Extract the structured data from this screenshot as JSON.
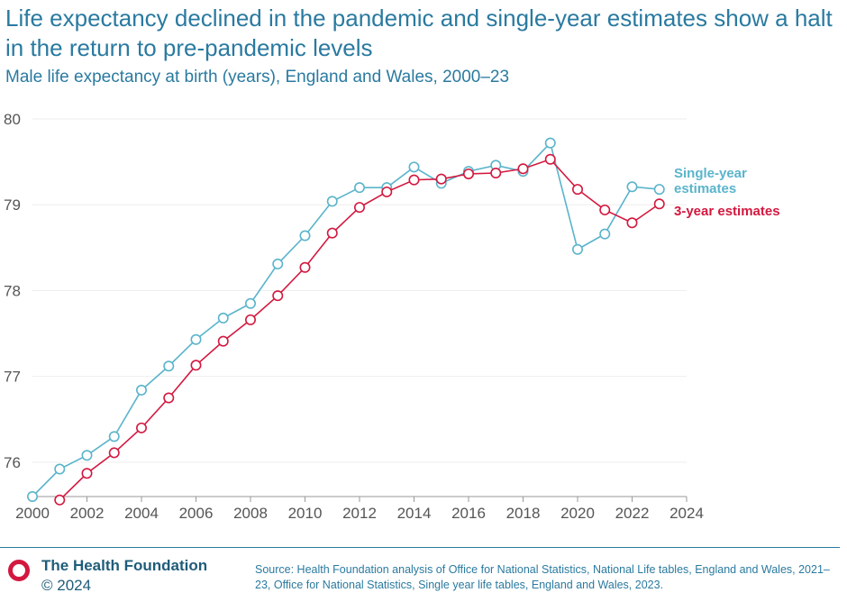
{
  "header": {
    "title": "Life expectancy declined in the pandemic and single-year estimates show a halt in the return to pre-pandemic levels",
    "subtitle": "Male life expectancy at birth (years), England and Wales, 2000–23"
  },
  "chart_data": {
    "type": "line",
    "title": "Life expectancy declined in the pandemic and single-year estimates show a halt in the return to pre-pandemic levels",
    "subtitle": "Male life expectancy at birth (years), England and Wales, 2000–23",
    "xlabel": "",
    "ylabel": "",
    "xlim": [
      2000,
      2024
    ],
    "ylim": [
      75.6,
      80
    ],
    "x_ticks": [
      2000,
      2002,
      2004,
      2006,
      2008,
      2010,
      2012,
      2014,
      2016,
      2018,
      2020,
      2022,
      2024
    ],
    "y_ticks": [
      76,
      77,
      78,
      79,
      80
    ],
    "grid": true,
    "colors": {
      "single": "#5ab4cb",
      "three": "#d3183f",
      "axis": "#999999",
      "grid": "#eeeeee"
    },
    "series": [
      {
        "id": "single",
        "name": "Single-year estimates",
        "label_lines": [
          "Single-year",
          "estimates"
        ],
        "x": [
          2000,
          2001,
          2002,
          2003,
          2004,
          2005,
          2006,
          2007,
          2008,
          2009,
          2010,
          2011,
          2012,
          2013,
          2014,
          2015,
          2016,
          2017,
          2018,
          2019,
          2020,
          2021,
          2022,
          2023
        ],
        "values": [
          75.6,
          75.92,
          76.08,
          76.3,
          76.84,
          77.12,
          77.43,
          77.68,
          77.85,
          78.31,
          78.64,
          79.04,
          79.2,
          79.2,
          79.44,
          79.25,
          79.39,
          79.46,
          79.39,
          79.72,
          78.48,
          78.66,
          79.21,
          79.18
        ]
      },
      {
        "id": "three",
        "name": "3-year estimates",
        "label_lines": [
          "3-year estimates"
        ],
        "x": [
          2001,
          2002,
          2003,
          2004,
          2005,
          2006,
          2007,
          2008,
          2009,
          2010,
          2011,
          2012,
          2013,
          2014,
          2015,
          2016,
          2017,
          2018,
          2019,
          2020,
          2021,
          2022,
          2023
        ],
        "values": [
          75.56,
          75.87,
          76.11,
          76.4,
          76.75,
          77.13,
          77.41,
          77.66,
          77.94,
          78.27,
          78.67,
          78.97,
          79.15,
          79.29,
          79.3,
          79.36,
          79.37,
          79.42,
          79.53,
          79.18,
          78.94,
          78.79,
          79.01
        ]
      }
    ]
  },
  "footer": {
    "org": "The Health Foundation",
    "copyright": "© 2024",
    "source": "Source: Health Foundation analysis of Office for National Statistics, National Life tables, England and Wales, 2021–23, Office for National Statistics, Single year life tables, England and Wales, 2023.",
    "logo_icon": "ring-logo-icon",
    "logo_color": "#d3183f"
  }
}
